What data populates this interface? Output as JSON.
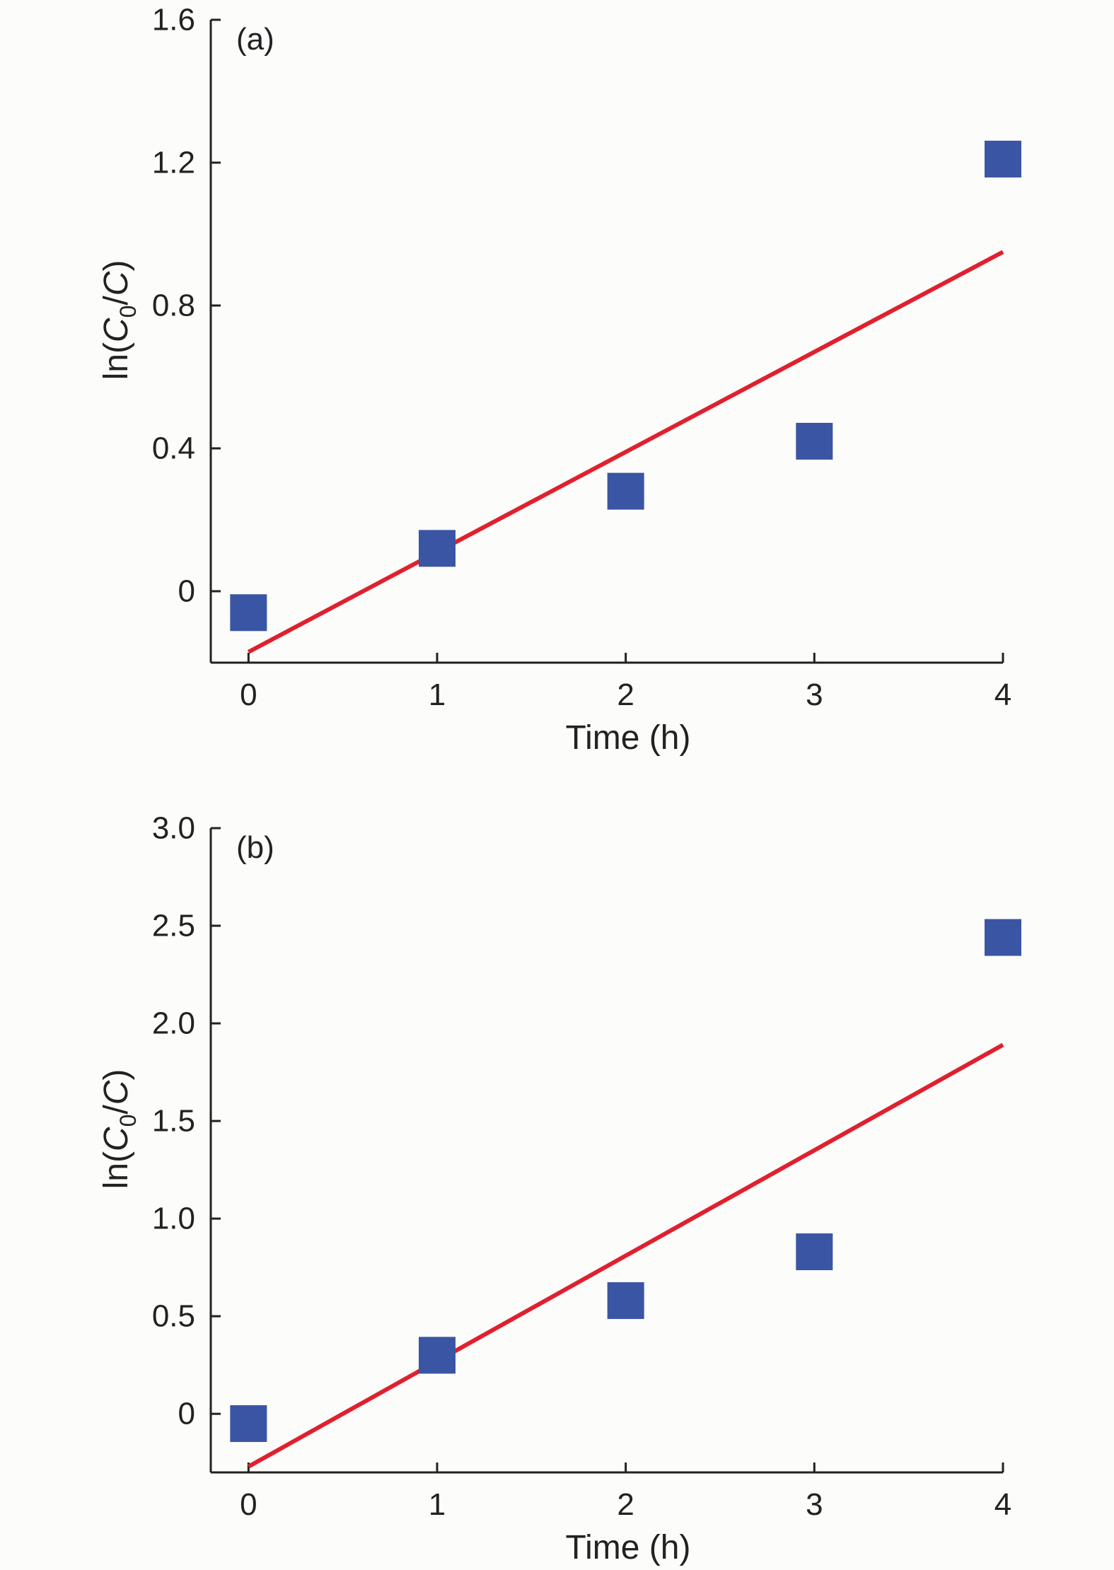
{
  "colors": {
    "background": "#fcfcfa",
    "marker": "#3a55a4",
    "fit_line": "#e0202e",
    "axis": "#222222"
  },
  "chart_data": [
    {
      "type": "scatter",
      "panel_label": "(a)",
      "xlabel": "Time (h)",
      "ylabel": {
        "prefix": "ln(",
        "c0": "C",
        "c0_sub": "0",
        "slash": "/",
        "c": "C",
        "suffix": ")"
      },
      "xlim": [
        -0.2,
        4
      ],
      "ylim": [
        -0.2,
        1.6
      ],
      "xticks": [
        0,
        1,
        2,
        3,
        4
      ],
      "xtick_labels": [
        "0",
        "1",
        "2",
        "3",
        "4"
      ],
      "yticks": [
        0,
        0.4,
        0.8,
        1.2,
        1.6
      ],
      "ytick_labels": [
        "0",
        "0.4",
        "0.8",
        "1.2",
        "1.6"
      ],
      "series": [
        {
          "kind": "points",
          "marker": "square",
          "x": [
            0,
            1,
            2,
            3,
            4
          ],
          "y": [
            -0.06,
            0.12,
            0.28,
            0.42,
            1.21
          ]
        },
        {
          "kind": "fit_line",
          "x": [
            0,
            4
          ],
          "y": [
            -0.17,
            0.95
          ]
        }
      ]
    },
    {
      "type": "scatter",
      "panel_label": "(b)",
      "xlabel": "Time (h)",
      "ylabel": {
        "prefix": "ln(",
        "c0": "C",
        "c0_sub": "0",
        "slash": "/",
        "c": "C",
        "suffix": ")"
      },
      "xlim": [
        -0.2,
        4
      ],
      "ylim": [
        -0.3,
        3.0
      ],
      "xticks": [
        0,
        1,
        2,
        3,
        4
      ],
      "xtick_labels": [
        "0",
        "1",
        "2",
        "3",
        "4"
      ],
      "yticks": [
        0,
        0.5,
        1.0,
        1.5,
        2.0,
        2.5,
        3.0
      ],
      "ytick_labels": [
        "0",
        "0.5",
        "1.0",
        "1.5",
        "2.0",
        "2.5",
        "3.0"
      ],
      "series": [
        {
          "kind": "points",
          "marker": "square",
          "x": [
            0,
            1,
            2,
            3,
            4
          ],
          "y": [
            -0.05,
            0.3,
            0.58,
            0.83,
            2.44
          ]
        },
        {
          "kind": "fit_line",
          "x": [
            0,
            4
          ],
          "y": [
            -0.27,
            1.89
          ]
        }
      ]
    }
  ]
}
